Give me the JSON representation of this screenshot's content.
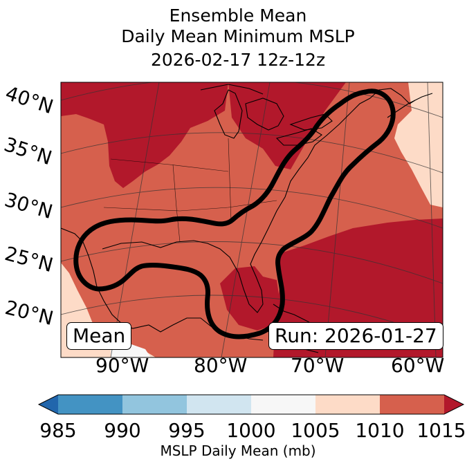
{
  "title": {
    "line1": "Ensemble Mean",
    "line2": "Daily Mean Minimum MSLP",
    "line3": "2026-02-17 12z-12z"
  },
  "map": {
    "lat_labels": [
      "40°N",
      "35°N",
      "30°N",
      "25°N",
      "20°N"
    ],
    "lon_labels": [
      "90°W",
      "80°W",
      "70°W",
      "60°W"
    ],
    "mean_label": "Mean",
    "run_label": "Run: 2026-01-27"
  },
  "colorbar": {
    "label": "MSLP Daily Mean (mb)",
    "ticks": [
      "985",
      "990",
      "995",
      "1000",
      "1005",
      "1010",
      "1015"
    ],
    "colors": [
      "#2166ac",
      "#4393c3",
      "#92c5de",
      "#d1e5f0",
      "#f7f7f7",
      "#fddbc7",
      "#d6604d",
      "#b2182b"
    ]
  }
}
